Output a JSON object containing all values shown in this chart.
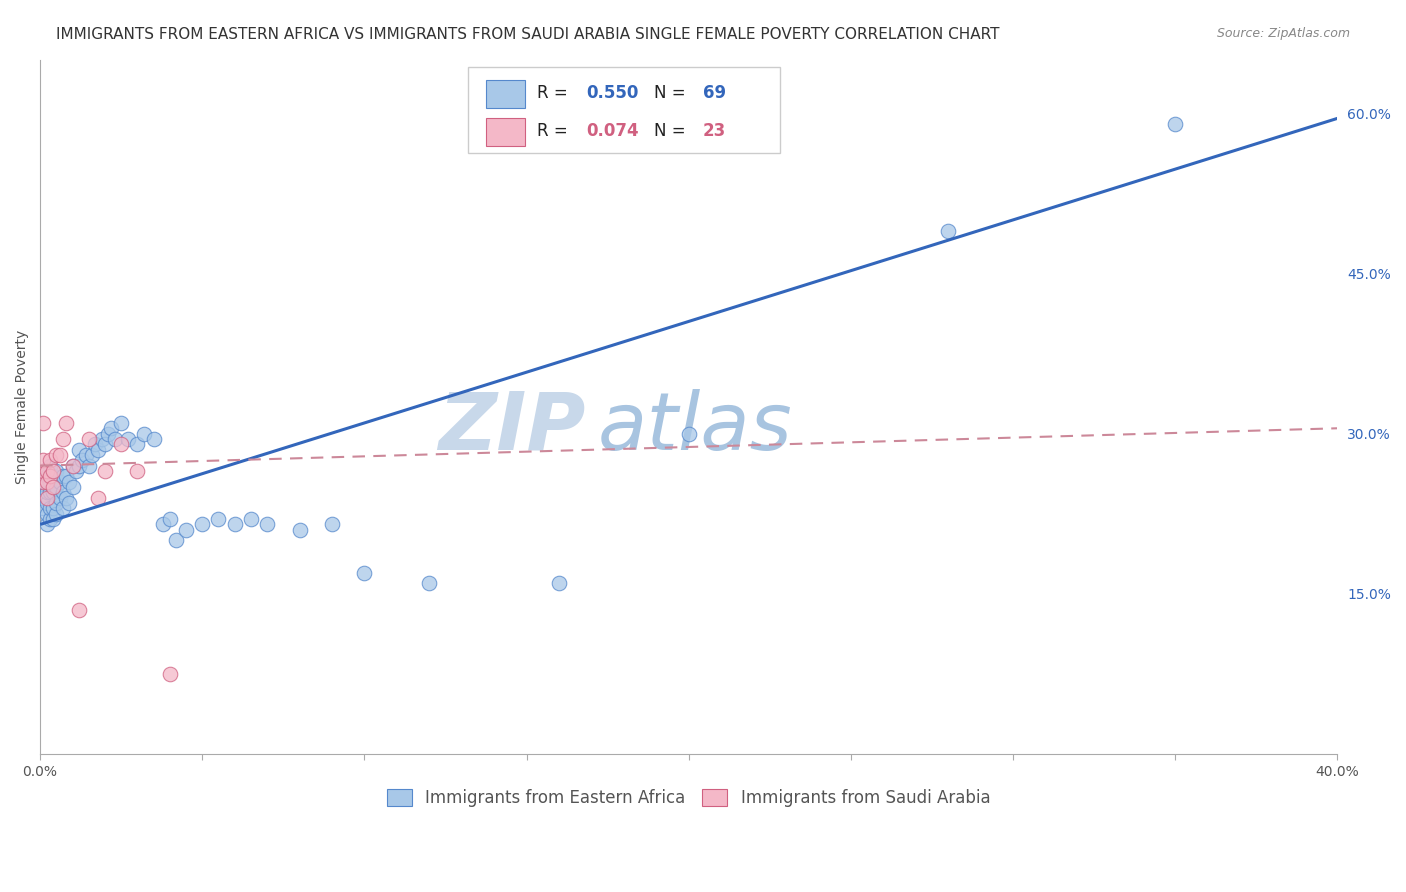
{
  "title": "IMMIGRANTS FROM EASTERN AFRICA VS IMMIGRANTS FROM SAUDI ARABIA SINGLE FEMALE POVERTY CORRELATION CHART",
  "source": "Source: ZipAtlas.com",
  "ylabel": "Single Female Poverty",
  "xlim": [
    0.0,
    0.4
  ],
  "ylim": [
    0.0,
    0.65
  ],
  "xticks": [
    0.0,
    0.05,
    0.1,
    0.15,
    0.2,
    0.25,
    0.3,
    0.35,
    0.4
  ],
  "yticks_right": [
    0.15,
    0.3,
    0.45,
    0.6
  ],
  "ytick_right_labels": [
    "15.0%",
    "30.0%",
    "45.0%",
    "60.0%"
  ],
  "R_blue": 0.55,
  "N_blue": 69,
  "R_pink": 0.074,
  "N_pink": 23,
  "blue_color": "#a8c8e8",
  "pink_color": "#f4b8c8",
  "blue_edge_color": "#5588cc",
  "pink_edge_color": "#d06080",
  "blue_line_color": "#3366bb",
  "pink_line_color": "#cc8899",
  "watermark_zip": "ZIP",
  "watermark_atlas": "atlas",
  "blue_scatter_x": [
    0.001,
    0.001,
    0.001,
    0.001,
    0.002,
    0.002,
    0.002,
    0.002,
    0.002,
    0.003,
    0.003,
    0.003,
    0.003,
    0.003,
    0.004,
    0.004,
    0.004,
    0.004,
    0.005,
    0.005,
    0.005,
    0.005,
    0.006,
    0.006,
    0.007,
    0.007,
    0.007,
    0.008,
    0.008,
    0.009,
    0.009,
    0.01,
    0.01,
    0.011,
    0.012,
    0.012,
    0.013,
    0.014,
    0.015,
    0.016,
    0.017,
    0.018,
    0.019,
    0.02,
    0.021,
    0.022,
    0.023,
    0.025,
    0.027,
    0.03,
    0.032,
    0.035,
    0.038,
    0.04,
    0.042,
    0.045,
    0.05,
    0.055,
    0.06,
    0.065,
    0.07,
    0.08,
    0.09,
    0.1,
    0.12,
    0.16,
    0.2,
    0.28,
    0.35
  ],
  "blue_scatter_y": [
    0.23,
    0.24,
    0.255,
    0.265,
    0.215,
    0.225,
    0.235,
    0.245,
    0.26,
    0.22,
    0.23,
    0.245,
    0.255,
    0.27,
    0.22,
    0.23,
    0.245,
    0.26,
    0.225,
    0.235,
    0.25,
    0.265,
    0.24,
    0.255,
    0.23,
    0.245,
    0.26,
    0.24,
    0.26,
    0.235,
    0.255,
    0.25,
    0.27,
    0.265,
    0.27,
    0.285,
    0.275,
    0.28,
    0.27,
    0.28,
    0.29,
    0.285,
    0.295,
    0.29,
    0.3,
    0.305,
    0.295,
    0.31,
    0.295,
    0.29,
    0.3,
    0.295,
    0.215,
    0.22,
    0.2,
    0.21,
    0.215,
    0.22,
    0.215,
    0.22,
    0.215,
    0.21,
    0.215,
    0.17,
    0.16,
    0.16,
    0.3,
    0.49,
    0.59
  ],
  "pink_scatter_x": [
    0.001,
    0.001,
    0.001,
    0.001,
    0.002,
    0.002,
    0.002,
    0.003,
    0.003,
    0.004,
    0.004,
    0.005,
    0.006,
    0.007,
    0.008,
    0.01,
    0.012,
    0.015,
    0.018,
    0.02,
    0.025,
    0.03,
    0.04
  ],
  "pink_scatter_y": [
    0.255,
    0.265,
    0.275,
    0.31,
    0.24,
    0.255,
    0.265,
    0.26,
    0.275,
    0.25,
    0.265,
    0.28,
    0.28,
    0.295,
    0.31,
    0.27,
    0.135,
    0.295,
    0.24,
    0.265,
    0.29,
    0.265,
    0.075
  ],
  "blue_trend_x": [
    0.0,
    0.4
  ],
  "blue_trend_y": [
    0.215,
    0.595
  ],
  "pink_trend_x": [
    0.0,
    0.4
  ],
  "pink_trend_y": [
    0.27,
    0.305
  ],
  "title_fontsize": 11,
  "source_fontsize": 9,
  "axis_label_fontsize": 10,
  "tick_fontsize": 10,
  "legend_fontsize": 12,
  "watermark_fontsize_zip": 58,
  "watermark_fontsize_atlas": 58,
  "background_color": "#ffffff",
  "grid_color": "#dddddd"
}
